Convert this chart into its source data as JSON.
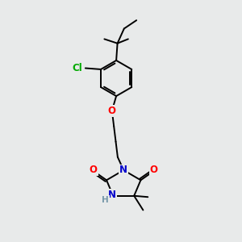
{
  "bg_color": "#e8eaea",
  "atom_colors": {
    "O": "#ff0000",
    "N": "#0000cc",
    "Cl": "#00aa00",
    "H": "#7799aa",
    "C": "#000000"
  },
  "bond_color": "#000000",
  "bond_width": 1.4,
  "font_size": 8.5,
  "fig_width": 3.0,
  "fig_height": 3.0,
  "dpi": 100
}
